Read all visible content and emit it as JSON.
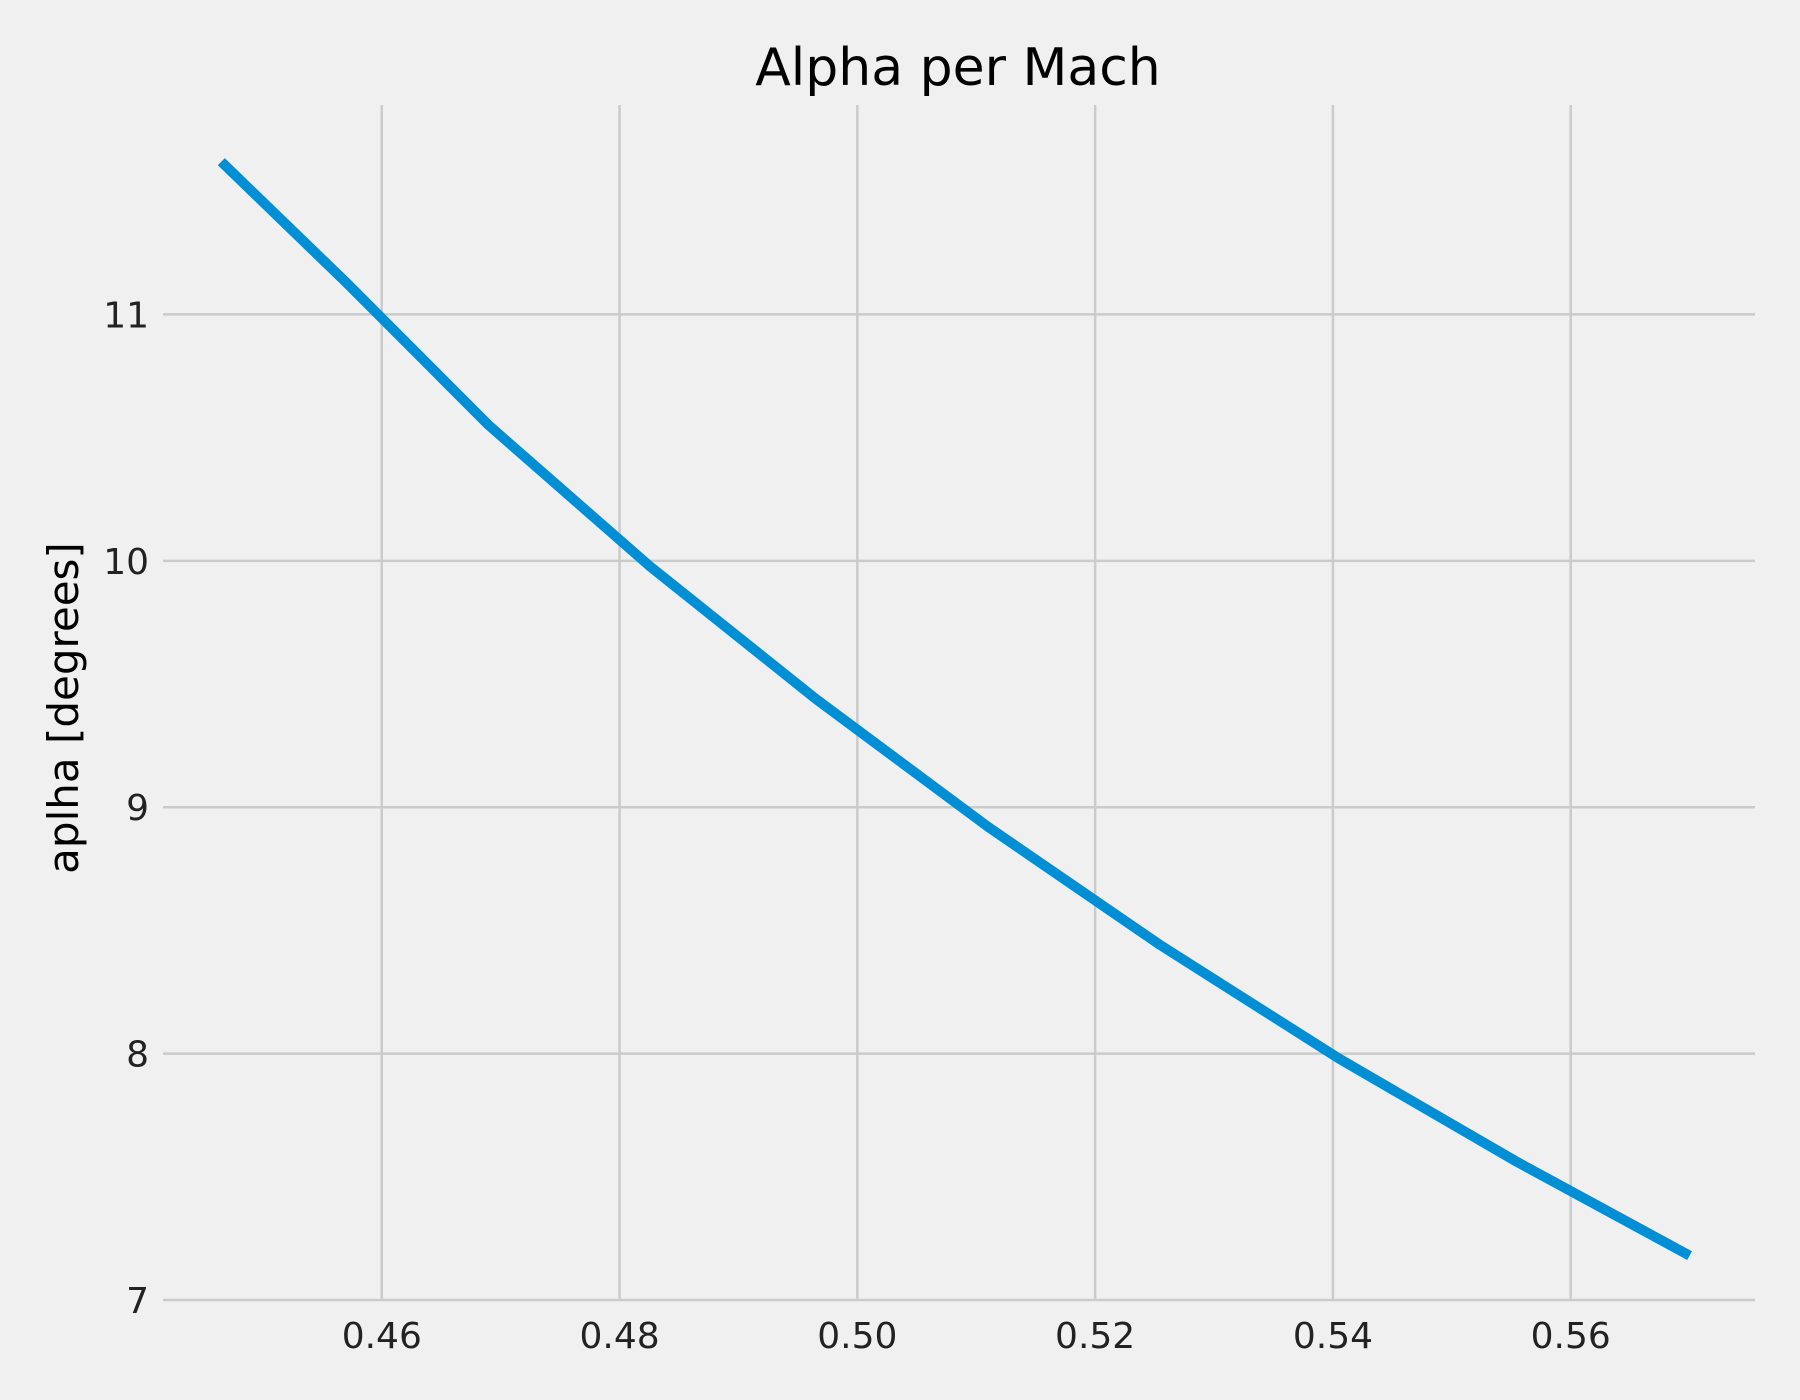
{
  "chart_data": {
    "type": "line",
    "title": "Alpha per Mach",
    "xlabel": "",
    "ylabel": "aplha [degrees]",
    "xlim": [
      0.4416,
      0.5755
    ],
    "ylim": [
      7.0,
      11.85
    ],
    "x_ticks": [
      "0.46",
      "0.48",
      "0.50",
      "0.52",
      "0.54",
      "0.56"
    ],
    "x_tick_values": [
      0.46,
      0.48,
      0.5,
      0.52,
      0.54,
      0.56
    ],
    "y_ticks": [
      "7",
      "8",
      "9",
      "10",
      "11"
    ],
    "y_tick_values": [
      7,
      8,
      9,
      10,
      11
    ],
    "grid": true,
    "series_color": "#008fd5",
    "grid_color": "#cbcbcb",
    "background_color": "#f0f0f0",
    "series": [
      {
        "x": [
          0.4465,
          0.457,
          0.469,
          0.4825,
          0.4965,
          0.511,
          0.5255,
          0.5405,
          0.5555,
          0.57
        ],
        "y": [
          11.62,
          11.13,
          10.55,
          9.98,
          9.44,
          8.92,
          8.44,
          7.98,
          7.56,
          7.18
        ]
      }
    ]
  }
}
